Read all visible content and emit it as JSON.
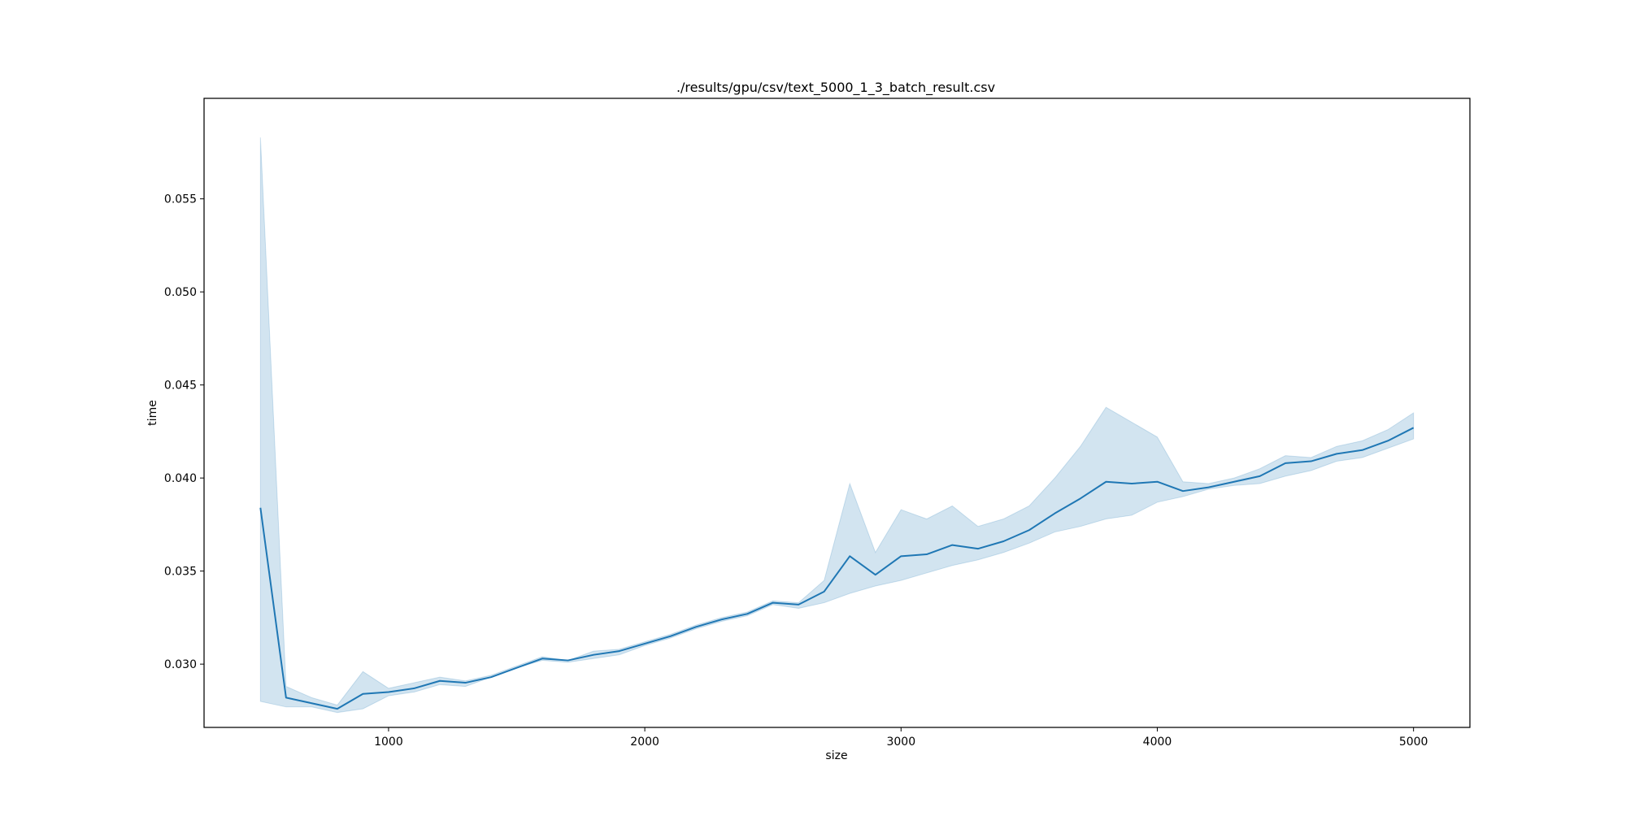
{
  "chart_data": {
    "type": "line",
    "title": "./results/gpu/csv/text_5000_1_3_batch_result.csv",
    "xlabel": "size",
    "ylabel": "time",
    "xlim": [
      280,
      5220
    ],
    "ylim": [
      0.0266,
      0.0604
    ],
    "xticks": [
      1000,
      2000,
      3000,
      4000,
      5000
    ],
    "yticks": [
      0.03,
      0.035,
      0.04,
      0.045,
      0.05,
      0.055
    ],
    "xtick_labels": [
      "1000",
      "2000",
      "3000",
      "4000",
      "5000"
    ],
    "ytick_labels": [
      "0.030",
      "0.035",
      "0.040",
      "0.045",
      "0.050",
      "0.055"
    ],
    "grid": false,
    "colors": {
      "line": "#1f77b4",
      "band": "#1f77b4"
    },
    "series": [
      {
        "x": [
          500,
          600,
          700,
          800,
          900,
          1000,
          1100,
          1200,
          1300,
          1400,
          1500,
          1600,
          1700,
          1800,
          1900,
          2000,
          2100,
          2200,
          2300,
          2400,
          2500,
          2600,
          2700,
          2800,
          2900,
          3000,
          3100,
          3200,
          3300,
          3400,
          3500,
          3600,
          3700,
          3800,
          3900,
          4000,
          4100,
          4200,
          4300,
          4400,
          4500,
          4600,
          4700,
          4800,
          4900,
          5000
        ],
        "y": [
          0.0384,
          0.0282,
          0.0279,
          0.0276,
          0.0284,
          0.0285,
          0.0287,
          0.0291,
          0.029,
          0.0293,
          0.0298,
          0.0303,
          0.0302,
          0.0305,
          0.0307,
          0.0311,
          0.0315,
          0.032,
          0.0324,
          0.0327,
          0.0333,
          0.0332,
          0.0339,
          0.0358,
          0.0348,
          0.0358,
          0.0359,
          0.0364,
          0.0362,
          0.0366,
          0.0372,
          0.0381,
          0.0389,
          0.0398,
          0.0397,
          0.0398,
          0.0393,
          0.0395,
          0.0398,
          0.0401,
          0.0408,
          0.0409,
          0.0413,
          0.0415,
          0.042,
          0.0427
        ],
        "lower": [
          0.028,
          0.0277,
          0.0277,
          0.0274,
          0.0276,
          0.0283,
          0.0285,
          0.0289,
          0.0288,
          0.0293,
          0.0298,
          0.0302,
          0.0301,
          0.0303,
          0.0305,
          0.031,
          0.0314,
          0.0319,
          0.0323,
          0.0326,
          0.0332,
          0.033,
          0.0333,
          0.0338,
          0.0342,
          0.0345,
          0.0349,
          0.0353,
          0.0356,
          0.036,
          0.0365,
          0.0371,
          0.0374,
          0.0378,
          0.038,
          0.0387,
          0.039,
          0.0394,
          0.0396,
          0.0397,
          0.0401,
          0.0404,
          0.0409,
          0.0411,
          0.0416,
          0.0421
        ],
        "upper": [
          0.0583,
          0.0288,
          0.0282,
          0.0278,
          0.0296,
          0.0287,
          0.029,
          0.0293,
          0.0291,
          0.0294,
          0.0299,
          0.0304,
          0.0302,
          0.0307,
          0.0308,
          0.0312,
          0.0316,
          0.0321,
          0.0325,
          0.0328,
          0.0334,
          0.0333,
          0.0345,
          0.0397,
          0.036,
          0.0383,
          0.0378,
          0.0385,
          0.0374,
          0.0378,
          0.0385,
          0.04,
          0.0417,
          0.0438,
          0.043,
          0.0422,
          0.0398,
          0.0397,
          0.04,
          0.0405,
          0.0412,
          0.0411,
          0.0417,
          0.042,
          0.0426,
          0.0435
        ]
      }
    ]
  }
}
